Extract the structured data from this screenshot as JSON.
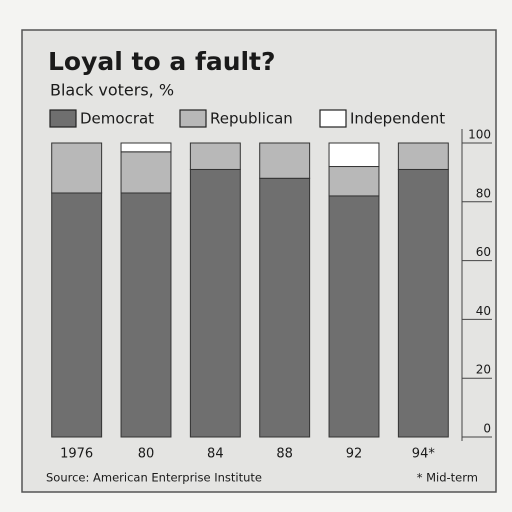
{
  "chart_data": {
    "type": "stacked-bar",
    "title": "Loyal to a fault?",
    "subtitle": "Black voters, %",
    "categories": [
      "1976",
      "80",
      "84",
      "88",
      "92",
      "94*"
    ],
    "series": [
      {
        "name": "Democrat",
        "color": "#6f6f6f",
        "values": [
          83,
          83,
          91,
          88,
          82,
          91
        ]
      },
      {
        "name": "Republican",
        "color": "#b8b8b8",
        "values": [
          17,
          14,
          9,
          12,
          10,
          9
        ]
      },
      {
        "name": "Independent",
        "color": "#ffffff",
        "values": [
          0,
          3,
          0,
          0,
          8,
          0
        ]
      }
    ],
    "ylim": [
      0,
      100
    ],
    "yticks": [
      0,
      20,
      40,
      60,
      80,
      100
    ],
    "y_axis_side": "right",
    "grid": false,
    "legend": "top",
    "source": "Source: American Enterprise Institute",
    "footnote": "* Mid-term"
  }
}
